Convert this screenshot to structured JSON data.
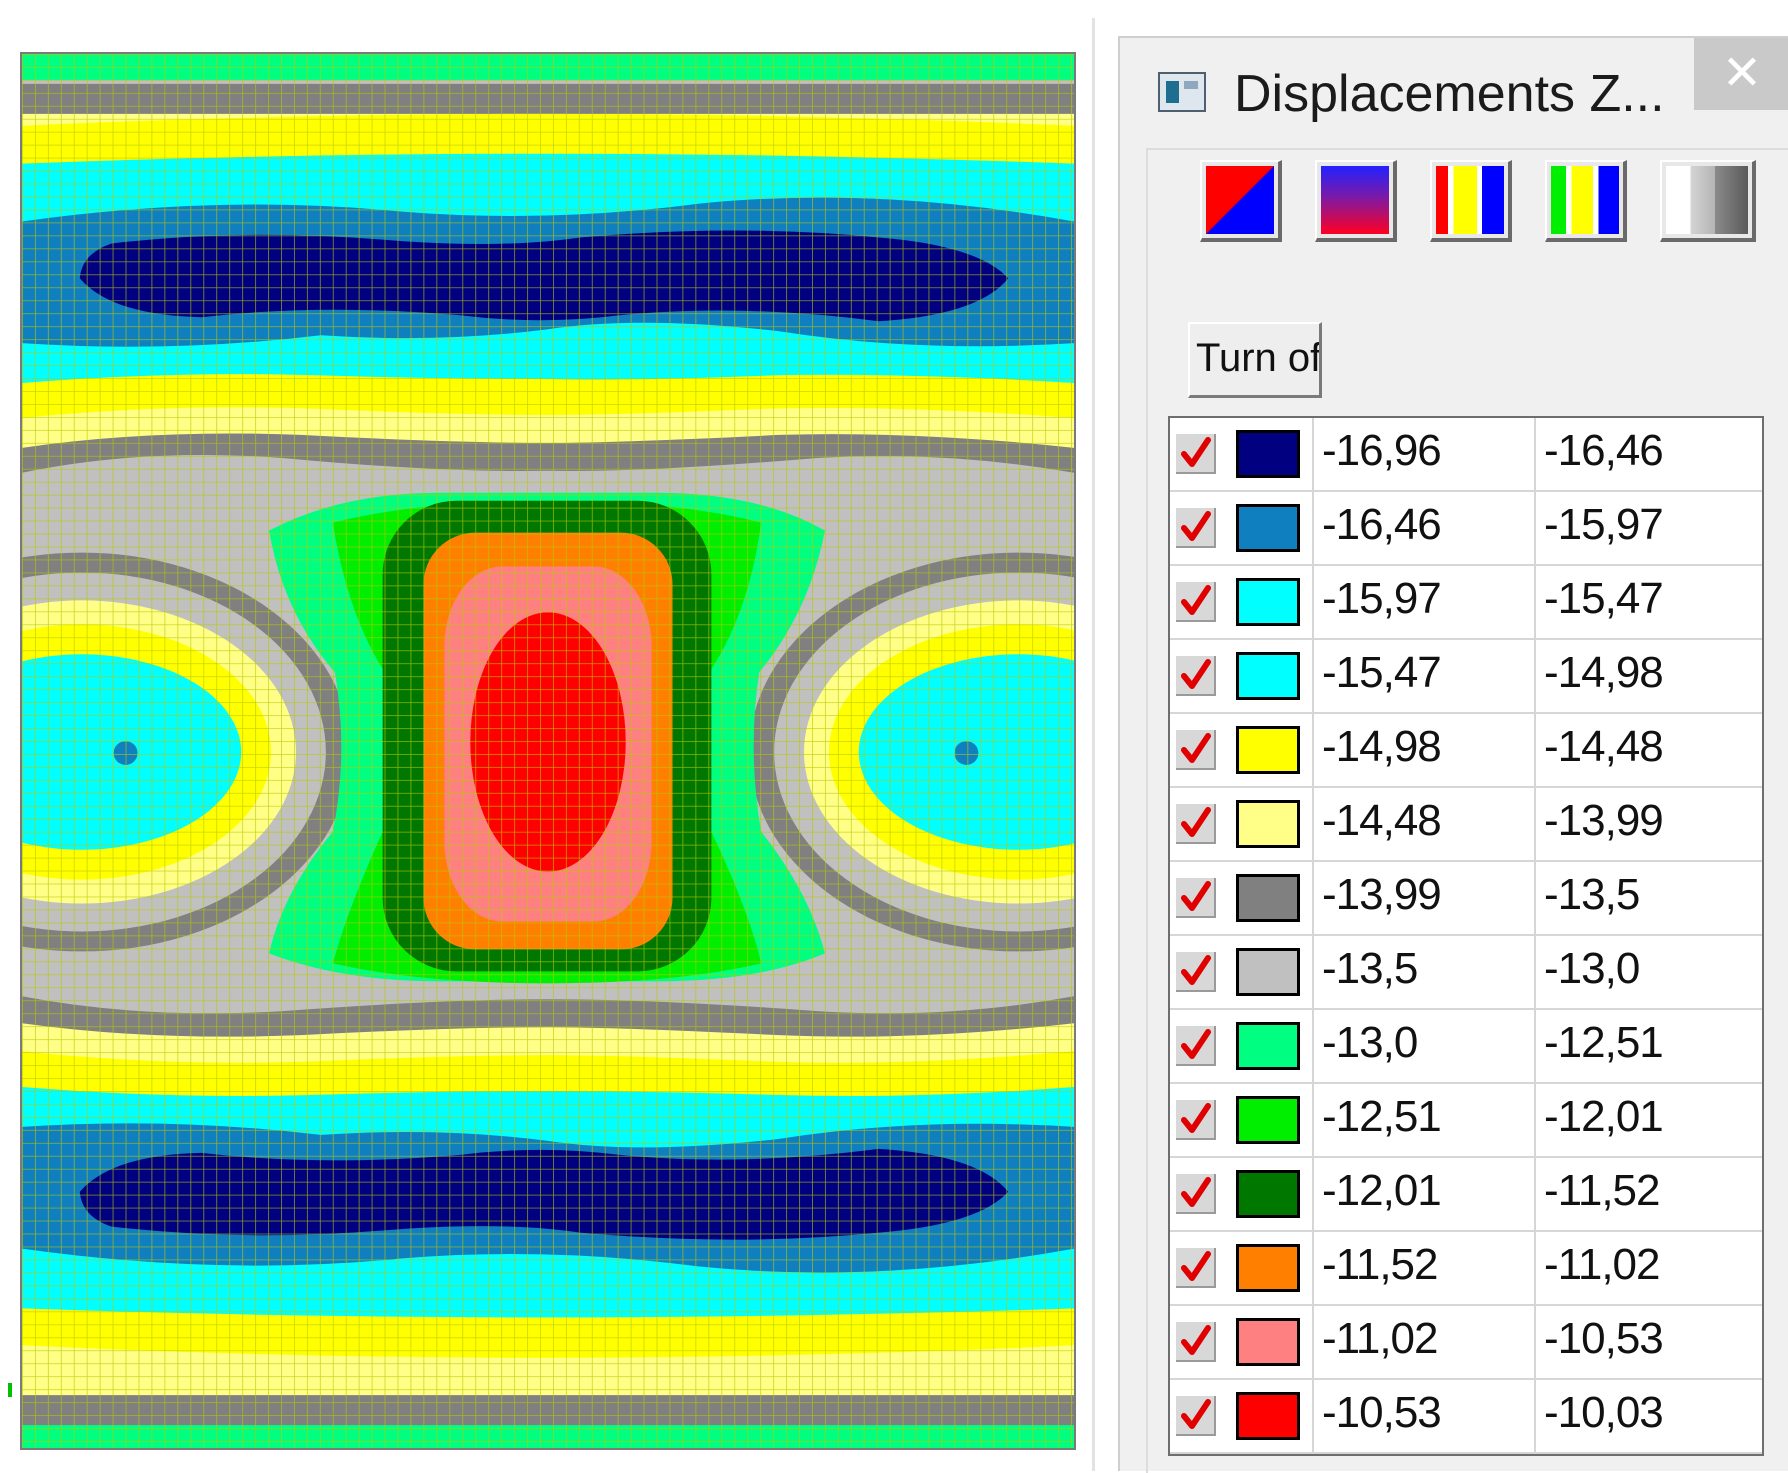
{
  "window": {
    "title": "Displacements Z...",
    "close_glyph": "✕",
    "icon": "window-app-icon"
  },
  "toolbar": {
    "scheme_buttons": [
      {
        "name": "diagonal-red-blue-scheme",
        "colors": [
          "#ff0000",
          "#0000ff"
        ]
      },
      {
        "name": "gradient-blue-red-scheme",
        "colors": [
          "#1a1aff",
          "#ff0033"
        ]
      },
      {
        "name": "red-yellow-blue-bands-scheme",
        "colors": [
          "#ff0000",
          "#ffff00",
          "#0000ff"
        ]
      },
      {
        "name": "green-yellow-blue-bands-scheme",
        "colors": [
          "#00ee00",
          "#ffff00",
          "#0000ff"
        ]
      },
      {
        "name": "grayscale-scheme",
        "colors": [
          "#ffffff",
          "#9a9a9a",
          "#5a5a5a"
        ]
      }
    ],
    "turn_off_label": "Turn of"
  },
  "legend": {
    "rows": [
      {
        "checked": true,
        "color": "#000080",
        "from": "-16,96",
        "to": "-16,46"
      },
      {
        "checked": true,
        "color": "#0f7fbf",
        "from": "-16,46",
        "to": "-15,97"
      },
      {
        "checked": true,
        "color": "#00ffff",
        "from": "-15,97",
        "to": "-15,47"
      },
      {
        "checked": true,
        "color": "#00ffff",
        "from": "-15,47",
        "to": "-14,98"
      },
      {
        "checked": true,
        "color": "#ffff00",
        "from": "-14,98",
        "to": "-14,48"
      },
      {
        "checked": true,
        "color": "#ffff88",
        "from": "-14,48",
        "to": "-13,99"
      },
      {
        "checked": true,
        "color": "#808080",
        "from": "-13,99",
        "to": "-13,5"
      },
      {
        "checked": true,
        "color": "#c0c0c0",
        "from": "-13,5",
        "to": "-13,0"
      },
      {
        "checked": true,
        "color": "#00ff80",
        "from": "-13,0",
        "to": "-12,51"
      },
      {
        "checked": true,
        "color": "#00ee00",
        "from": "-12,51",
        "to": "-12,01"
      },
      {
        "checked": true,
        "color": "#007800",
        "from": "-12,01",
        "to": "-11,52"
      },
      {
        "checked": true,
        "color": "#ff8000",
        "from": "-11,52",
        "to": "-11,02"
      },
      {
        "checked": true,
        "color": "#ff8080",
        "from": "-11,02",
        "to": "-10,53"
      },
      {
        "checked": true,
        "color": "#ff0000",
        "from": "-10,53",
        "to": "-10,03"
      }
    ]
  },
  "plot": {
    "name": "displacement-contour-plot",
    "mesh_color": "#b8c800",
    "band_colors": {
      "dark_blue": "#000080",
      "mid_blue": "#0f7fbf",
      "cyan": "#00ffff",
      "yellow": "#ffff00",
      "light_yellow": "#ffff88",
      "dark_gray": "#808080",
      "light_gray": "#c0c0c0",
      "light_green": "#00ff80",
      "green": "#00ee00",
      "dark_green": "#007800",
      "orange": "#ff8000",
      "pink": "#ff8080",
      "red": "#ff0000"
    }
  }
}
